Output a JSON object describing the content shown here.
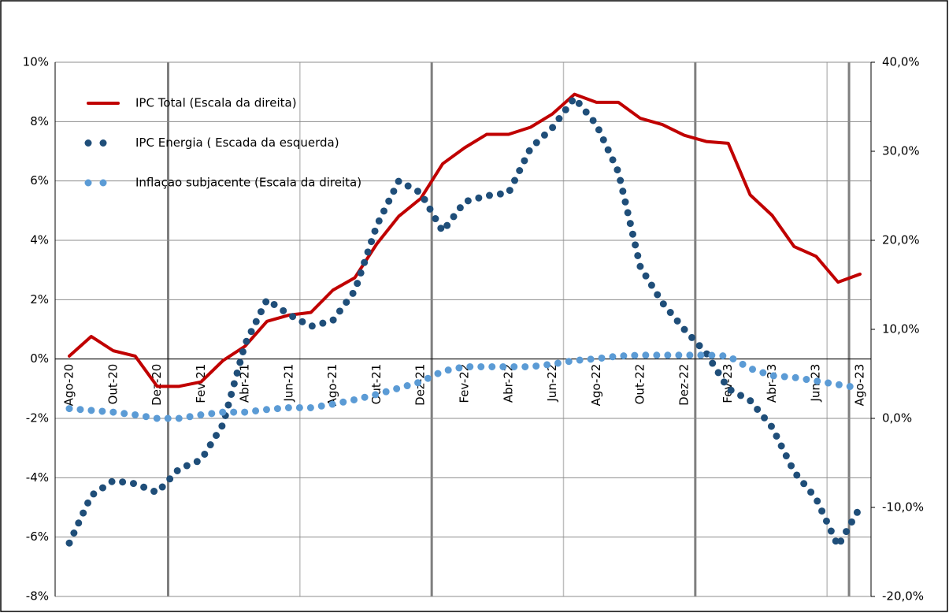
{
  "chart_data": {
    "type": "line",
    "categories": [
      "Ago-20",
      null,
      "Out-20",
      null,
      "Dez-20",
      null,
      "Fev-21",
      null,
      "Abr-21",
      null,
      "Jun-21",
      null,
      "Ago-21",
      null,
      "Out-21",
      null,
      "Dez-21",
      null,
      "Fev-22",
      null,
      "Abr-22",
      null,
      "Jun-22",
      null,
      "Ago-22",
      null,
      "Out-22",
      null,
      "Dez-22",
      null,
      "Fev-23",
      null,
      "Abr-23",
      null,
      "Jun-23",
      null,
      "Ago-23"
    ],
    "series": [
      {
        "name": "IPC Total (Escala da  direita)",
        "color": "#c00000",
        "style": "solid",
        "axis": "y2",
        "values": [
          7.0,
          9.2,
          7.6,
          7.0,
          3.6,
          3.6,
          4.1,
          6.5,
          8.1,
          10.9,
          11.6,
          11.9,
          14.4,
          15.8,
          19.6,
          22.7,
          24.7,
          28.6,
          30.4,
          31.9,
          31.9,
          32.7,
          34.2,
          36.4,
          35.5,
          35.5,
          33.7,
          33.0,
          31.8,
          31.1,
          30.9,
          25.1,
          22.8,
          19.3,
          18.2,
          15.3,
          16.2
        ]
      },
      {
        "name": "IPC Energia ( Escada da esquerda)",
        "color": "#1f4e79",
        "style": "dotted",
        "values": [
          -6.2,
          -4.6,
          -4.1,
          -4.2,
          -4.5,
          -3.7,
          -3.4,
          -2.2,
          0.5,
          2.0,
          1.5,
          1.1,
          1.3,
          2.3,
          4.5,
          6.0,
          5.6,
          4.3,
          5.3,
          5.5,
          5.6,
          7.1,
          7.8,
          8.8,
          7.9,
          6.3,
          3.1,
          1.9,
          1.0,
          0.2,
          -1.0,
          -1.4,
          -2.3,
          -3.8,
          -4.7,
          -6.3,
          -5.0
        ]
      },
      {
        "name": "Inflaçao subjacente (Escala da direita)",
        "color": "#5b9bd5",
        "style": "dotted",
        "axis": "y2",
        "values": [
          1.1,
          0.9,
          0.7,
          0.4,
          0.0,
          0.0,
          0.4,
          0.7,
          0.7,
          1.0,
          1.2,
          1.2,
          1.6,
          2.1,
          2.7,
          3.4,
          4.1,
          5.3,
          5.8,
          5.8,
          5.8,
          5.8,
          6.1,
          6.5,
          6.7,
          7.0,
          7.1,
          7.1,
          7.1,
          7.1,
          7.0,
          5.6,
          4.8,
          4.6,
          4.2,
          3.8,
          3.4
        ]
      }
    ],
    "ylim": [
      -8,
      10
    ],
    "yticks": [
      {
        "value": -8,
        "label": "-8%"
      },
      {
        "value": -6,
        "label": "-6%"
      },
      {
        "value": -4,
        "label": "-4%"
      },
      {
        "value": -2,
        "label": "-2%"
      },
      {
        "value": 0,
        "label": "0%"
      },
      {
        "value": 2,
        "label": "2%"
      },
      {
        "value": 4,
        "label": "4%"
      },
      {
        "value": 6,
        "label": "6%"
      },
      {
        "value": 8,
        "label": "8%"
      },
      {
        "value": 10,
        "label": "10%"
      }
    ],
    "y2lim": [
      -20,
      40
    ],
    "y2ticks": [
      {
        "value": -20,
        "label": "-20,0%"
      },
      {
        "value": -10,
        "label": "-10,0%"
      },
      {
        "value": 0,
        "label": "0,0%"
      },
      {
        "value": 10,
        "label": "10,0%"
      },
      {
        "value": 20,
        "label": "20,0%"
      },
      {
        "value": 30,
        "label": "30,0%"
      },
      {
        "value": 40,
        "label": "40,0%"
      }
    ],
    "grid": true,
    "legend": "upper left"
  }
}
